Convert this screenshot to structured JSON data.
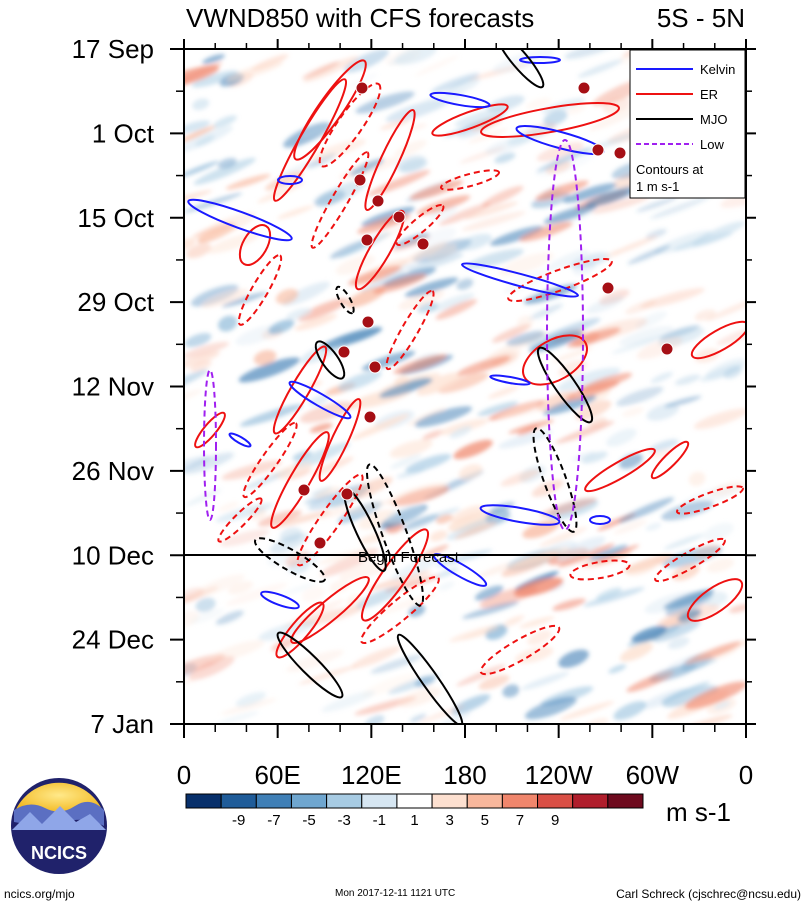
{
  "chart_data": {
    "type": "heatmap",
    "title": "VWND850 with CFS forecasts",
    "region": "5S - 5N",
    "x_ticks": [
      "0",
      "60E",
      "120E",
      "180",
      "120W",
      "60W",
      "0"
    ],
    "x_range": [
      0,
      360
    ],
    "y_ticks": [
      "17 Sep",
      "1 Oct",
      "15 Oct",
      "29 Oct",
      "12 Nov",
      "26 Nov",
      "10 Dec",
      "24 Dec",
      "7 Jan"
    ],
    "y_range_days_from_17_Sep": [
      0,
      112
    ],
    "forecast_start": "10 Dec",
    "forecast_label": "Begin Forecast",
    "colorbar": {
      "unit": "m s-1",
      "labels": [
        "-9",
        "-7",
        "-5",
        "-3",
        "-1",
        "1",
        "3",
        "5",
        "7",
        "9"
      ],
      "colors": [
        "#08306b",
        "#1f5c99",
        "#3f7fb6",
        "#6fa6cf",
        "#a7cbe3",
        "#d6e6f2",
        "#ffffff",
        "#fde0d0",
        "#f8b79c",
        "#f0866c",
        "#d94f45",
        "#b01e2c",
        "#6e0a1e"
      ]
    },
    "legend": {
      "placement": "top-right",
      "entries": [
        {
          "name": "Kelvin",
          "color": "#1a1aff",
          "style": "solid"
        },
        {
          "name": "ER",
          "color": "#ee1111",
          "style": "solid"
        },
        {
          "name": "MJO",
          "color": "#000000",
          "style": "solid"
        },
        {
          "name": "Low",
          "color": "#a020f0",
          "style": "dashed"
        }
      ],
      "note_line1": "Contours at",
      "note_line2": "1 m s-1"
    }
  },
  "logo_text": "NCICS",
  "footer": {
    "left": "ncics.org/mjo",
    "center": "Mon 2017-12-11 1121 UTC",
    "right": "Carl Schreck (cjschrec@ncsu.edu)"
  }
}
